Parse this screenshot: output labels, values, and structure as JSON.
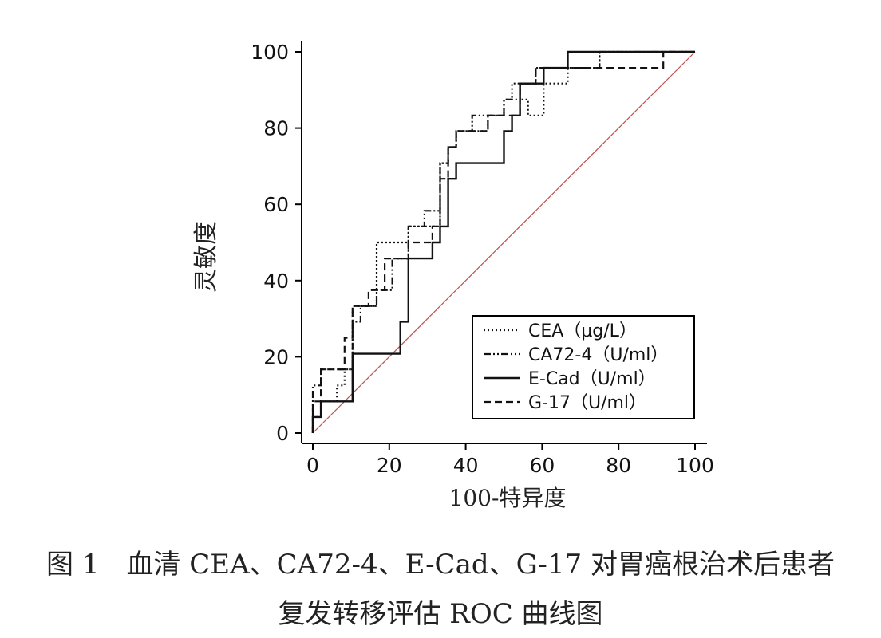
{
  "chart_data": {
    "type": "line",
    "ylabel": "灵敏度",
    "xlabel": "100-特异度",
    "xlim": [
      0,
      100
    ],
    "ylim": [
      0,
      100
    ],
    "xticks": [
      "0",
      "20",
      "40",
      "60",
      "80",
      "100"
    ],
    "yticks": [
      "0",
      "20",
      "40",
      "60",
      "80",
      "100"
    ],
    "legend_position": "bottom-right",
    "reference_line": {
      "x": [
        0,
        100
      ],
      "y": [
        0,
        100
      ],
      "color": "#c0504d"
    },
    "series": [
      {
        "name": "CEA（μg/L）",
        "style": "dotted",
        "x": [
          0,
          0,
          2.1,
          2.1,
          6.3,
          6.3,
          8.3,
          8.3,
          10.4,
          10.4,
          16.7,
          16.7,
          25,
          25,
          33.3,
          33.3,
          35.4,
          35.4,
          37.5,
          37.5,
          45.8,
          45.8,
          50,
          50,
          52.1,
          52.1,
          54.2,
          54.2,
          56.3,
          56.3,
          60.4,
          60.4,
          66.7,
          66.7,
          75,
          75,
          100
        ],
        "y": [
          0,
          4.2,
          4.2,
          8.3,
          8.3,
          12.5,
          12.5,
          16.7,
          16.7,
          33.3,
          33.3,
          50,
          50,
          54.2,
          54.2,
          70.8,
          70.8,
          75,
          75,
          79.2,
          79.2,
          83.3,
          83.3,
          87.5,
          87.5,
          91.7,
          91.7,
          87.5,
          87.5,
          83.3,
          83.3,
          91.7,
          91.7,
          95.8,
          95.8,
          100,
          100
        ]
      },
      {
        "name": "CA72-4（U/ml）",
        "style": "dash-dot-dot",
        "x": [
          0,
          0,
          2.1,
          2.1,
          10.4,
          10.4,
          12.5,
          12.5,
          16.7,
          16.7,
          20.8,
          20.8,
          25,
          25,
          29.2,
          29.2,
          33.3,
          33.3,
          35.4,
          35.4,
          37.5,
          37.5,
          41.7,
          41.7,
          50,
          50,
          54.2,
          54.2,
          58.3,
          58.3,
          66.7,
          66.7,
          75,
          75,
          100
        ],
        "y": [
          0,
          12.5,
          12.5,
          16.7,
          16.7,
          29.2,
          29.2,
          33.3,
          33.3,
          37.5,
          37.5,
          45.8,
          45.8,
          54.2,
          54.2,
          58.3,
          58.3,
          70.8,
          70.8,
          75,
          75,
          79.2,
          79.2,
          83.3,
          83.3,
          87.5,
          87.5,
          91.7,
          91.7,
          95.8,
          95.8,
          95.8,
          95.8,
          100,
          100
        ]
      },
      {
        "name": "E-Cad（U/ml）",
        "style": "solid",
        "x": [
          0,
          0,
          2.1,
          2.1,
          10.4,
          10.4,
          22.9,
          22.9,
          25,
          25,
          31.3,
          31.3,
          33.3,
          33.3,
          35.4,
          35.4,
          37.5,
          37.5,
          50,
          50,
          52.1,
          52.1,
          54.2,
          54.2,
          60.4,
          60.4,
          66.7,
          66.7,
          100
        ],
        "y": [
          0,
          4.2,
          4.2,
          8.3,
          8.3,
          20.8,
          20.8,
          29.2,
          29.2,
          45.8,
          45.8,
          50,
          50,
          54.2,
          54.2,
          66.7,
          66.7,
          70.8,
          70.8,
          79.2,
          79.2,
          83.3,
          83.3,
          91.7,
          91.7,
          95.8,
          95.8,
          100,
          100
        ]
      },
      {
        "name": "G-17（U/ml）",
        "style": "dashed",
        "x": [
          0,
          0,
          2.1,
          2.1,
          8.3,
          8.3,
          10.4,
          10.4,
          14.6,
          14.6,
          18.8,
          18.8,
          25,
          25,
          31.3,
          31.3,
          33.3,
          33.3,
          35.4,
          35.4,
          37.5,
          37.5,
          45.8,
          45.8,
          54.2,
          54.2,
          58.3,
          58.3,
          66.7,
          66.7,
          91.7,
          91.7,
          93.8,
          93.8,
          100
        ],
        "y": [
          0,
          8.3,
          8.3,
          16.7,
          16.7,
          25,
          25,
          33.3,
          33.3,
          37.5,
          37.5,
          45.8,
          45.8,
          50,
          50,
          54.2,
          54.2,
          66.7,
          66.7,
          75,
          75,
          79.2,
          79.2,
          83.3,
          83.3,
          91.7,
          91.7,
          95.8,
          95.8,
          95.8,
          95.8,
          100,
          100,
          100,
          100
        ]
      }
    ]
  },
  "caption": {
    "line1": "图 1　血清 CEA、CA72-4、E-Cad、G-17 对胃癌根治术后患者",
    "line2": "复发转移评估 ROC 曲线图"
  }
}
